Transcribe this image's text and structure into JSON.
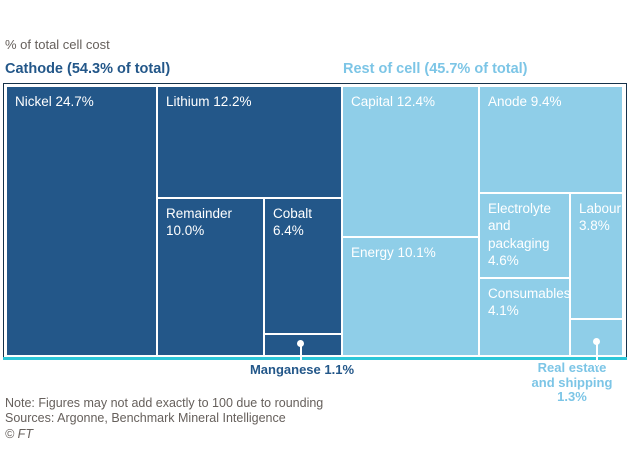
{
  "header": {
    "unit_label": "% of total cell cost"
  },
  "chart_data": {
    "type": "treemap",
    "title": "% of total cell cost",
    "legend_position": "top",
    "groups": [
      {
        "name": "Cathode",
        "title": "Cathode (54.3% of total)",
        "value_pct": 54.3,
        "color": "#235789",
        "children": [
          {
            "name": "Nickel",
            "value_pct": 24.7,
            "label": "Nickel 24.7%"
          },
          {
            "name": "Lithium",
            "value_pct": 12.2,
            "label": "Lithium 12.2%"
          },
          {
            "name": "Remainder",
            "value_pct": 10.0,
            "label": "Remainder 10.0%"
          },
          {
            "name": "Cobalt",
            "value_pct": 6.4,
            "label": "Cobalt 6.4%"
          },
          {
            "name": "Manganese",
            "value_pct": 1.1,
            "label": "Manganese 1.1%",
            "callout": true
          }
        ]
      },
      {
        "name": "Rest of cell",
        "title": "Rest of cell (45.7% of total)",
        "value_pct": 45.7,
        "color": "#8FCEE8",
        "children": [
          {
            "name": "Capital",
            "value_pct": 12.4,
            "label": "Capital 12.4%"
          },
          {
            "name": "Energy",
            "value_pct": 10.1,
            "label": "Energy 10.1%"
          },
          {
            "name": "Anode",
            "value_pct": 9.4,
            "label": "Anode 9.4%"
          },
          {
            "name": "Electrolyte and packaging",
            "value_pct": 4.6,
            "label": "Electrolyte and packaging 4.6%"
          },
          {
            "name": "Consumables",
            "value_pct": 4.1,
            "label": "Consumables 4.1%"
          },
          {
            "name": "Labour",
            "value_pct": 3.8,
            "label": "Labour 3.8%"
          },
          {
            "name": "Real estate and shipping",
            "value_pct": 1.3,
            "label": "Real estate and shipping 1.3%",
            "callout": true,
            "label_line1": "Real estate",
            "label_line2": "and shipping 1.3%"
          }
        ]
      }
    ],
    "baseline_color": "#2CC6D8",
    "frame_color": "#16324A"
  },
  "footer": {
    "note": "Note: Figures may not add exactly to 100 due to rounding",
    "sources": "Sources: Argonne, Benchmark Mineral Intelligence",
    "copyright": "© FT"
  }
}
